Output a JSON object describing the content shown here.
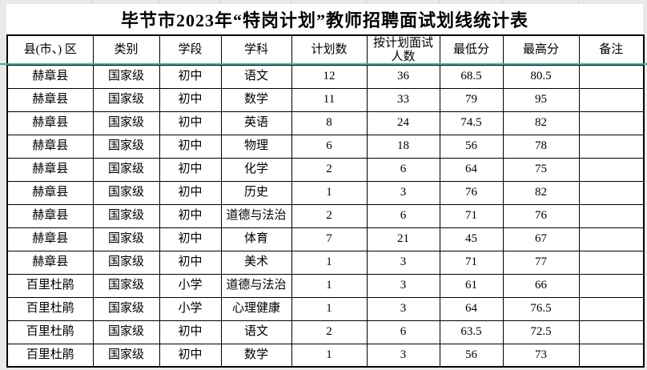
{
  "title": "毕节市2023年“特岗计划”教师招聘面试划线统计表",
  "table": {
    "columns": [
      "县(市、) 区",
      "类别",
      "学段",
      "学科",
      "计划数",
      "按计划面试人数",
      "最低分",
      "最高分",
      "备注"
    ],
    "rows": [
      [
        "赫章县",
        "国家级",
        "初中",
        "语文",
        "12",
        "36",
        "68.5",
        "80.5",
        ""
      ],
      [
        "赫章县",
        "国家级",
        "初中",
        "数学",
        "11",
        "33",
        "79",
        "95",
        ""
      ],
      [
        "赫章县",
        "国家级",
        "初中",
        "英语",
        "8",
        "24",
        "74.5",
        "82",
        ""
      ],
      [
        "赫章县",
        "国家级",
        "初中",
        "物理",
        "6",
        "18",
        "56",
        "78",
        ""
      ],
      [
        "赫章县",
        "国家级",
        "初中",
        "化学",
        "2",
        "6",
        "64",
        "75",
        ""
      ],
      [
        "赫章县",
        "国家级",
        "初中",
        "历史",
        "1",
        "3",
        "76",
        "82",
        ""
      ],
      [
        "赫章县",
        "国家级",
        "初中",
        "道德与法治",
        "2",
        "6",
        "71",
        "76",
        ""
      ],
      [
        "赫章县",
        "国家级",
        "初中",
        "体育",
        "7",
        "21",
        "45",
        "67",
        ""
      ],
      [
        "赫章县",
        "国家级",
        "初中",
        "美术",
        "1",
        "3",
        "71",
        "77",
        ""
      ],
      [
        "百里杜鹃",
        "国家级",
        "小学",
        "道德与法治",
        "1",
        "3",
        "61",
        "66",
        ""
      ],
      [
        "百里杜鹃",
        "国家级",
        "小学",
        "心理健康",
        "1",
        "3",
        "64",
        "76.5",
        ""
      ],
      [
        "百里杜鹃",
        "国家级",
        "初中",
        "语文",
        "2",
        "6",
        "63.5",
        "72.5",
        ""
      ],
      [
        "百里杜鹃",
        "国家级",
        "初中",
        "数学",
        "1",
        "3",
        "56",
        "73",
        ""
      ]
    ]
  },
  "colors": {
    "freeze_line": "#3bb2a0",
    "grid_border": "#000000",
    "cell_bg": "#ffffff",
    "page_bg": "#e9e9e9",
    "text": "#000000"
  }
}
